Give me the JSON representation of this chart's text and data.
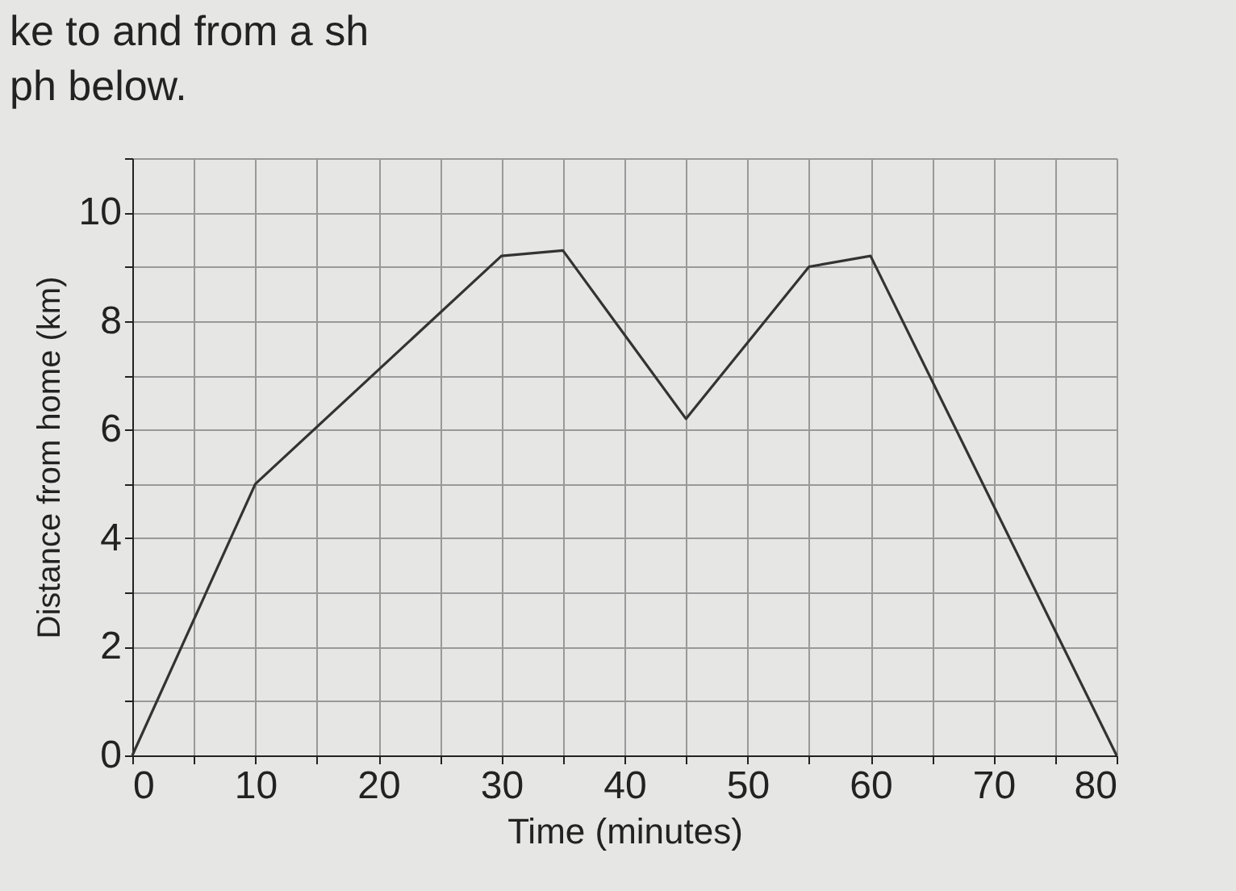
{
  "chart_data": {
    "type": "line",
    "xlabel": "Time (minutes)",
    "ylabel": "Distance from home (km)",
    "x": [
      0,
      10,
      30,
      35,
      45,
      55,
      60,
      80
    ],
    "values": [
      0,
      5,
      9.2,
      9.3,
      6.2,
      9,
      9.2,
      0
    ],
    "color": "#333333",
    "xlim": [
      0,
      80
    ],
    "ylim": [
      0,
      11
    ],
    "xticks": [
      0,
      {
        "value": 5,
        "label": null
      },
      10,
      {
        "value": 15,
        "label": null
      },
      20,
      {
        "value": 25,
        "label": null
      },
      30,
      {
        "value": 35,
        "label": null
      },
      40,
      {
        "value": 45,
        "label": null
      },
      50,
      {
        "value": 55,
        "label": null
      },
      60,
      {
        "value": 65,
        "label": null
      },
      70,
      {
        "value": 75,
        "label": null
      },
      80
    ],
    "yticks": [
      0,
      {
        "value": 1,
        "label": null
      },
      2,
      {
        "value": 3,
        "label": null
      },
      4,
      {
        "value": 5,
        "label": null
      },
      6,
      {
        "value": 7,
        "label": null
      },
      8,
      {
        "value": 9,
        "label": null
      },
      10,
      {
        "value": 11,
        "label": null
      }
    ],
    "grid": true,
    "annotations": [
      "ke to and from a sh",
      "ph below."
    ]
  }
}
